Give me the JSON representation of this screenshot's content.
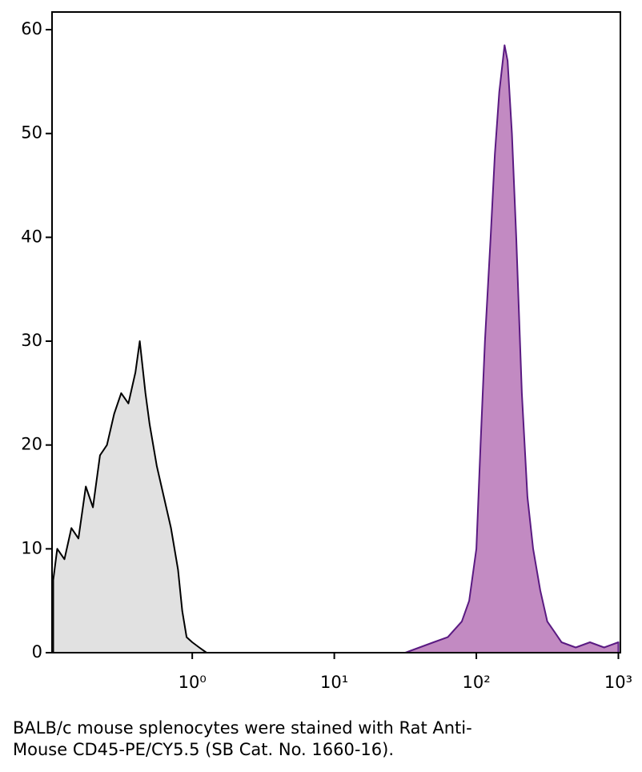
{
  "chart_data": {
    "type": "area",
    "xscale": "log",
    "xlim": [
      0.103,
      1033
    ],
    "ylim": [
      0,
      61.7
    ],
    "xticks": [
      {
        "value": 1,
        "label": "10⁰"
      },
      {
        "value": 10,
        "label": "10¹"
      },
      {
        "value": 100,
        "label": "10²"
      },
      {
        "value": 1000,
        "label": "10³"
      }
    ],
    "yticks": [
      0,
      10,
      20,
      30,
      40,
      50,
      60
    ],
    "series": [
      {
        "color": "#000000",
        "fill": "#e1e1e1",
        "x": [
          0.105,
          0.112,
          0.126,
          0.141,
          0.158,
          0.178,
          0.2,
          0.224,
          0.251,
          0.282,
          0.316,
          0.355,
          0.398,
          0.427,
          0.468,
          0.501,
          0.562,
          0.631,
          0.708,
          0.794,
          0.851,
          0.912,
          1,
          1.12,
          1.26,
          1.5
        ],
        "values": [
          7,
          10,
          9,
          12,
          11,
          16,
          14,
          19,
          20,
          23,
          25,
          24,
          27,
          30,
          25,
          22,
          18,
          15,
          12,
          8,
          4,
          1.5,
          1,
          0.5,
          0,
          0
        ]
      },
      {
        "color": "#5a1a82",
        "fill": "#c28ac2",
        "x": [
          31.6,
          50,
          63,
          79,
          89,
          100,
          107,
          115,
          126,
          135,
          145,
          158,
          166,
          178,
          191,
          209,
          229,
          251,
          282,
          316,
          355,
          398,
          501,
          631,
          794,
          1000
        ],
        "values": [
          0,
          1,
          1.5,
          3,
          5,
          10,
          20,
          30,
          40,
          48,
          54,
          58.5,
          57,
          50,
          40,
          25,
          15,
          10,
          6,
          3,
          2,
          1,
          0.5,
          1,
          0.5,
          1
        ]
      }
    ],
    "caption": [
      "BALB/c mouse splenocytes were stained with Rat Anti-",
      "Mouse CD45-PE/CY5.5 (SB Cat. No. 1660-16)."
    ]
  }
}
